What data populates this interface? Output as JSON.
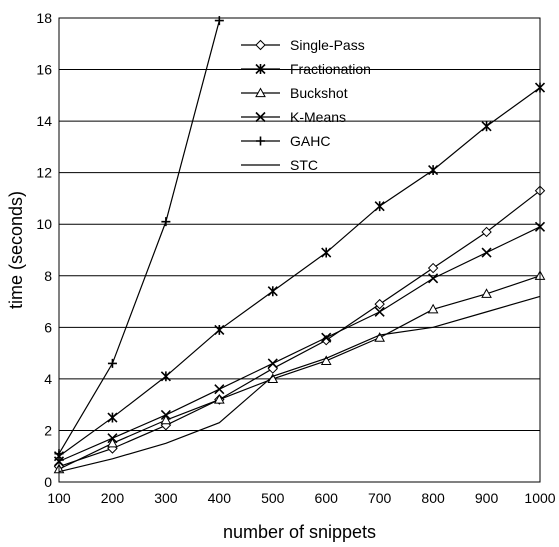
{
  "chart_data": {
    "type": "line",
    "title": "",
    "xlabel": "number of snippets",
    "ylabel": "time (seconds)",
    "xlim": [
      100,
      1000
    ],
    "ylim": [
      0,
      18
    ],
    "xticks": [
      "100",
      "200",
      "300",
      "400",
      "500",
      "600",
      "700",
      "800",
      "900",
      "1000"
    ],
    "yticks": [
      "0",
      "2",
      "4",
      "6",
      "8",
      "10",
      "12",
      "14",
      "16",
      "18"
    ],
    "grid": "horizontal",
    "legend_position": "top-center",
    "x": [
      100,
      200,
      300,
      400,
      500,
      600,
      700,
      800,
      900,
      1000
    ],
    "series": [
      {
        "name": "Single-Pass",
        "marker": "diamond",
        "x": [
          100,
          200,
          300,
          400,
          500,
          600,
          700,
          800,
          900,
          1000
        ],
        "values": [
          0.6,
          1.3,
          2.2,
          3.2,
          4.4,
          5.5,
          6.9,
          8.3,
          9.7,
          11.3
        ]
      },
      {
        "name": "Fractionation",
        "marker": "asterisk",
        "x": [
          100,
          200,
          300,
          400,
          500,
          600,
          700,
          800,
          900,
          1000
        ],
        "values": [
          1.0,
          2.5,
          4.1,
          5.9,
          7.4,
          8.9,
          10.7,
          12.1,
          13.8,
          15.3
        ]
      },
      {
        "name": "Buckshot",
        "marker": "triangle",
        "x": [
          100,
          200,
          300,
          400,
          500,
          600,
          700,
          800,
          900,
          1000
        ],
        "values": [
          0.5,
          1.5,
          2.4,
          3.2,
          4.0,
          4.7,
          5.6,
          6.7,
          7.3,
          8.0
        ]
      },
      {
        "name": "K-Means",
        "marker": "x",
        "x": [
          100,
          200,
          300,
          400,
          500,
          600,
          700,
          800,
          900,
          1000
        ],
        "values": [
          0.8,
          1.7,
          2.6,
          3.6,
          4.6,
          5.6,
          6.6,
          7.9,
          8.9,
          9.9
        ]
      },
      {
        "name": "GAHC",
        "marker": "plus",
        "x": [
          100,
          200,
          300,
          400
        ],
        "values": [
          1.1,
          4.6,
          10.1,
          17.9
        ]
      },
      {
        "name": "STC",
        "marker": "none",
        "x": [
          100,
          200,
          300,
          400,
          500,
          600,
          700,
          800,
          900,
          1000
        ],
        "values": [
          0.4,
          0.9,
          1.5,
          2.3,
          4.1,
          4.8,
          5.7,
          6.0,
          6.6,
          7.2
        ]
      }
    ]
  }
}
